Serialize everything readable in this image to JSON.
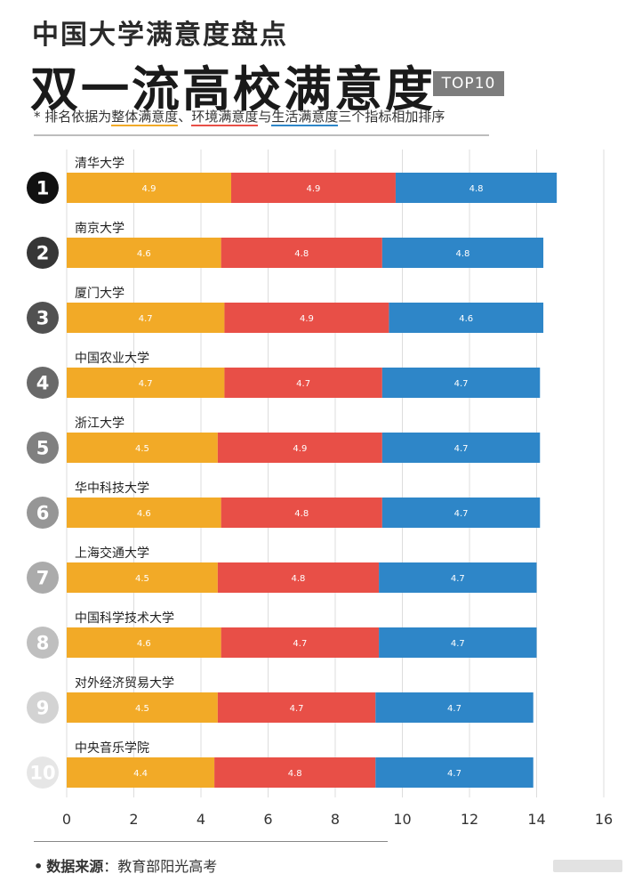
{
  "header": {
    "subtitle": "中国大学满意度盘点",
    "title": "双一流高校满意度",
    "badge": "TOP10"
  },
  "note": {
    "prefix": "* 排名依据为",
    "term1": "整体满意度",
    "sep1": "、",
    "term2": "环境满意度",
    "sep2": "与",
    "term3": "生活满意度",
    "suffix": "三个指标相加排序"
  },
  "footer": {
    "bullet": "•",
    "label": "数据来源",
    "colon": "：",
    "source": "教育部阳光高考"
  },
  "colors": {
    "overall": "#f2aa27",
    "environment": "#e84f47",
    "life": "#2e86c8",
    "grid": "#dddddd",
    "rank_top": "#111111",
    "rank_fade_end": "#e6e6e6"
  },
  "chart_data": {
    "type": "bar",
    "orientation": "horizontal",
    "stacked": true,
    "categories": [
      "清华大学",
      "南京大学",
      "厦门大学",
      "中国农业大学",
      "浙江大学",
      "华中科技大学",
      "上海交通大学",
      "中国科学技术大学",
      "对外经济贸易大学",
      "中央音乐学院"
    ],
    "ranks": [
      "1",
      "2",
      "3",
      "4",
      "5",
      "6",
      "7",
      "8",
      "9",
      "10"
    ],
    "series": [
      {
        "key": "overall",
        "values": [
          4.9,
          4.6,
          4.7,
          4.7,
          4.5,
          4.6,
          4.5,
          4.6,
          4.5,
          4.4
        ]
      },
      {
        "key": "environment",
        "values": [
          4.9,
          4.8,
          4.9,
          4.7,
          4.9,
          4.8,
          4.8,
          4.7,
          4.7,
          4.8
        ]
      },
      {
        "key": "life",
        "values": [
          4.8,
          4.8,
          4.6,
          4.7,
          4.7,
          4.7,
          4.7,
          4.7,
          4.7,
          4.7
        ]
      }
    ],
    "bar_totals": [
      14.6,
      14.2,
      14.2,
      14.1,
      14.1,
      14.1,
      14.0,
      14.0,
      13.9,
      13.9
    ],
    "xticks": [
      "0",
      "2",
      "4",
      "6",
      "8",
      "10",
      "12",
      "14",
      "16"
    ],
    "xlim": [
      0,
      16
    ],
    "grid": true,
    "legend": "none"
  }
}
